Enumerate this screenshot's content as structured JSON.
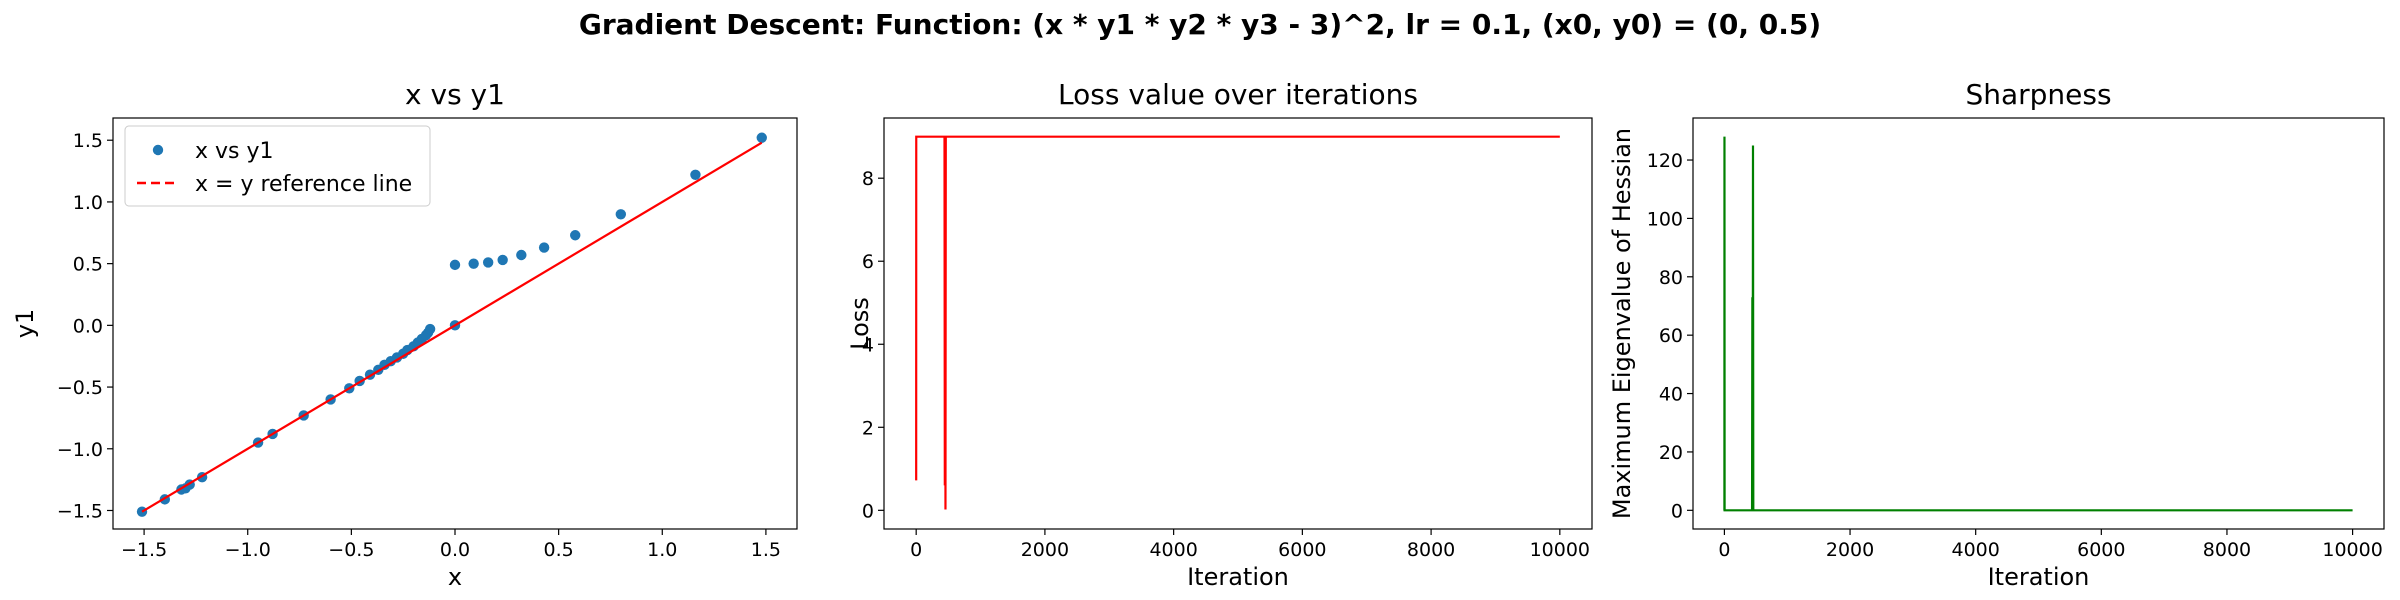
{
  "suptitle": "Gradient Descent: Function: (x * y1 * y2 * y3 - 3)^2, lr = 0.1, (x0, y0) = (0, 0.5)",
  "chart_data": [
    {
      "type": "scatter",
      "title": "x vs y1",
      "xlabel": "x",
      "ylabel": "y1",
      "xlim": [
        -1.65,
        1.65
      ],
      "ylim": [
        -1.65,
        1.68
      ],
      "xticks": [
        -1.5,
        -1.0,
        -0.5,
        0.0,
        0.5,
        1.0,
        1.5
      ],
      "xtick_labels": [
        "−1.5",
        "−1.0",
        "−0.5",
        "0.0",
        "0.5",
        "1.0",
        "1.5"
      ],
      "yticks": [
        -1.5,
        -1.0,
        -0.5,
        0.0,
        0.5,
        1.0,
        1.5
      ],
      "ytick_labels": [
        "−1.5",
        "−1.0",
        "−0.5",
        "0.0",
        "0.5",
        "1.0",
        "1.5"
      ],
      "legend_position": "upper-left",
      "series": [
        {
          "name": "x vs y1",
          "kind": "scatter",
          "color": "#1f77b4",
          "x": [
            -1.51,
            -1.4,
            -1.32,
            -1.3,
            -1.28,
            -1.22,
            -0.95,
            -0.88,
            -0.73,
            -0.6,
            -0.51,
            -0.46,
            -0.41,
            -0.37,
            -0.34,
            -0.31,
            -0.28,
            -0.25,
            -0.23,
            -0.2,
            -0.18,
            -0.16,
            -0.14,
            -0.13,
            -0.12,
            0.0,
            0.0,
            0.09,
            0.16,
            0.23,
            0.32,
            0.43,
            0.58,
            0.8,
            1.16,
            1.48
          ],
          "y": [
            -1.51,
            -1.41,
            -1.33,
            -1.32,
            -1.29,
            -1.23,
            -0.95,
            -0.88,
            -0.73,
            -0.6,
            -0.51,
            -0.45,
            -0.4,
            -0.36,
            -0.32,
            -0.29,
            -0.26,
            -0.23,
            -0.2,
            -0.17,
            -0.14,
            -0.11,
            -0.08,
            -0.06,
            -0.03,
            0.0,
            0.49,
            0.5,
            0.51,
            0.53,
            0.57,
            0.63,
            0.73,
            0.9,
            1.22,
            1.52
          ]
        },
        {
          "name": "x = y reference line",
          "kind": "line",
          "color": "#ff0000",
          "x": [
            -1.51,
            1.48
          ],
          "y": [
            -1.51,
            1.48
          ]
        }
      ]
    },
    {
      "type": "line",
      "title": "Loss value over iterations",
      "xlabel": "Iteration",
      "ylabel": "Loss",
      "xlim": [
        -500,
        10500
      ],
      "ylim": [
        -0.45,
        9.45
      ],
      "xticks": [
        0,
        2000,
        4000,
        6000,
        8000,
        10000
      ],
      "xtick_labels": [
        "0",
        "2000",
        "4000",
        "6000",
        "8000",
        "10000"
      ],
      "yticks": [
        0,
        2,
        4,
        6,
        8
      ],
      "ytick_labels": [
        "0",
        "2",
        "4",
        "6",
        "8"
      ],
      "series": [
        {
          "color": "#ff0000",
          "x": [
            0,
            1,
            3,
            440,
            445,
            450,
            455,
            460,
            10000
          ],
          "y": [
            0.72,
            9.0,
            9.0,
            9.0,
            0.6,
            9.0,
            0.02,
            9.0,
            9.0
          ]
        }
      ]
    },
    {
      "type": "line",
      "title": "Sharpness",
      "xlabel": "Iteration",
      "ylabel": "Maximum Eigenvalue of Hessian",
      "xlim": [
        -500,
        10500
      ],
      "ylim": [
        -6.4,
        134.4
      ],
      "xticks": [
        0,
        2000,
        4000,
        6000,
        8000,
        10000
      ],
      "xtick_labels": [
        "0",
        "2000",
        "4000",
        "6000",
        "8000",
        "10000"
      ],
      "yticks": [
        0,
        20,
        40,
        60,
        80,
        100,
        120
      ],
      "ytick_labels": [
        "0",
        "20",
        "40",
        "60",
        "80",
        "100",
        "120"
      ],
      "series": [
        {
          "color": "#008000",
          "x": [
            0,
            1,
            3,
            440,
            445,
            450,
            455,
            460,
            10000
          ],
          "y": [
            0.0,
            128.0,
            0.0,
            0.0,
            73.0,
            0.0,
            125.0,
            0.0,
            0.0
          ]
        }
      ]
    }
  ]
}
